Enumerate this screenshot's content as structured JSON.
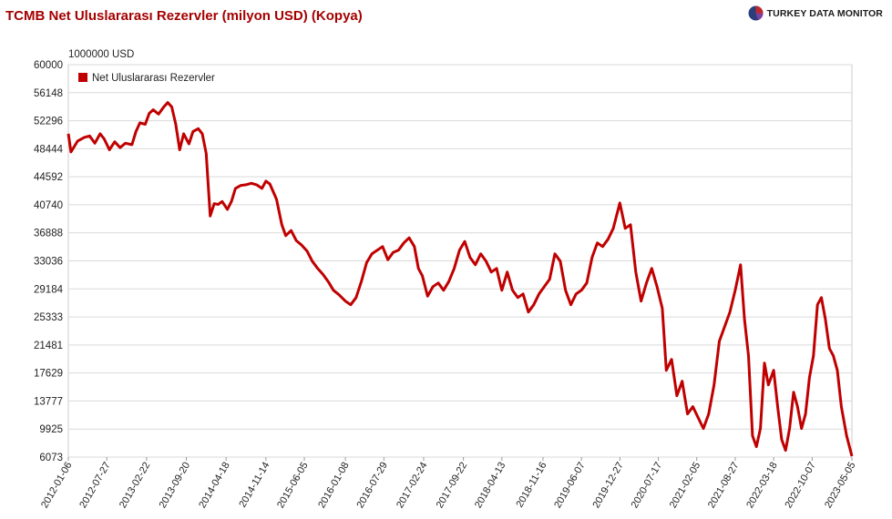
{
  "title": "TCMB Net Uluslararası Rezervler (milyon USD) (Kopya)",
  "logo": {
    "text": "TURKEY DATA MONITOR",
    "icon": "pie-logo-icon"
  },
  "colors": {
    "title": "#a50000",
    "series": "#c00000",
    "grid": "#d9d9d9"
  },
  "chart_data": {
    "type": "line",
    "unit_label": "1000000 USD",
    "legend_position": "top-left",
    "grid": true,
    "ylim": [
      6073,
      60000
    ],
    "y_ticks": [
      "60000",
      "56148",
      "52296",
      "48444",
      "44592",
      "40740",
      "36888",
      "33036",
      "29184",
      "25333",
      "21481",
      "17629",
      "13777",
      "9925",
      "6073"
    ],
    "x_ticks": [
      "2012-01-06",
      "2012-07-27",
      "2013-02-22",
      "2013-09-20",
      "2014-04-18",
      "2014-11-14",
      "2015-06-05",
      "2016-01-08",
      "2016-07-29",
      "2017-02-24",
      "2017-09-22",
      "2018-04-13",
      "2018-11-16",
      "2019-06-07",
      "2019-12-27",
      "2020-07-17",
      "2021-02-05",
      "2021-08-27",
      "2022-03-18",
      "2022-10-07",
      "2023-05-05"
    ],
    "series": [
      {
        "name": "Net Uluslararası Rezervler",
        "points": [
          [
            "2012-01-06",
            50500
          ],
          [
            "2012-01-20",
            48000
          ],
          [
            "2012-02-24",
            49500
          ],
          [
            "2012-03-30",
            50000
          ],
          [
            "2012-04-27",
            50200
          ],
          [
            "2012-05-25",
            49200
          ],
          [
            "2012-06-22",
            50500
          ],
          [
            "2012-07-13",
            49800
          ],
          [
            "2012-08-10",
            48300
          ],
          [
            "2012-09-07",
            49400
          ],
          [
            "2012-10-05",
            48600
          ],
          [
            "2012-11-02",
            49200
          ],
          [
            "2012-12-07",
            49000
          ],
          [
            "2012-12-28",
            50800
          ],
          [
            "2013-01-18",
            52000
          ],
          [
            "2013-02-15",
            51800
          ],
          [
            "2013-03-08",
            53300
          ],
          [
            "2013-03-29",
            53800
          ],
          [
            "2013-04-26",
            53200
          ],
          [
            "2013-05-24",
            54200
          ],
          [
            "2013-06-14",
            54800
          ],
          [
            "2013-07-05",
            54200
          ],
          [
            "2013-07-26",
            51800
          ],
          [
            "2013-08-16",
            48300
          ],
          [
            "2013-09-06",
            50500
          ],
          [
            "2013-10-04",
            49100
          ],
          [
            "2013-10-25",
            50800
          ],
          [
            "2013-11-22",
            51200
          ],
          [
            "2013-12-13",
            50500
          ],
          [
            "2014-01-03",
            47800
          ],
          [
            "2014-01-24",
            39200
          ],
          [
            "2014-02-14",
            40900
          ],
          [
            "2014-03-07",
            40800
          ],
          [
            "2014-03-28",
            41200
          ],
          [
            "2014-04-25",
            40100
          ],
          [
            "2014-05-16",
            41200
          ],
          [
            "2014-06-06",
            43000
          ],
          [
            "2014-07-04",
            43400
          ],
          [
            "2014-08-01",
            43500
          ],
          [
            "2014-08-29",
            43700
          ],
          [
            "2014-09-26",
            43500
          ],
          [
            "2014-10-24",
            43000
          ],
          [
            "2014-11-14",
            44000
          ],
          [
            "2014-12-05",
            43600
          ],
          [
            "2015-01-09",
            41500
          ],
          [
            "2015-02-06",
            38000
          ],
          [
            "2015-02-27",
            36500
          ],
          [
            "2015-03-27",
            37200
          ],
          [
            "2015-04-24",
            35800
          ],
          [
            "2015-05-22",
            35200
          ],
          [
            "2015-06-19",
            34400
          ],
          [
            "2015-07-17",
            33000
          ],
          [
            "2015-08-14",
            32000
          ],
          [
            "2015-09-11",
            31200
          ],
          [
            "2015-10-09",
            30200
          ],
          [
            "2015-11-06",
            29000
          ],
          [
            "2015-12-04",
            28400
          ],
          [
            "2016-01-08",
            27500
          ],
          [
            "2016-02-05",
            27000
          ],
          [
            "2016-03-04",
            28000
          ],
          [
            "2016-04-01",
            30200
          ],
          [
            "2016-04-29",
            32800
          ],
          [
            "2016-05-27",
            34000
          ],
          [
            "2016-06-24",
            34500
          ],
          [
            "2016-07-22",
            35000
          ],
          [
            "2016-08-19",
            33200
          ],
          [
            "2016-09-16",
            34200
          ],
          [
            "2016-10-14",
            34500
          ],
          [
            "2016-11-11",
            35500
          ],
          [
            "2016-12-09",
            36200
          ],
          [
            "2017-01-06",
            35000
          ],
          [
            "2017-01-27",
            32000
          ],
          [
            "2017-02-17",
            31000
          ],
          [
            "2017-03-17",
            28200
          ],
          [
            "2017-04-14",
            29500
          ],
          [
            "2017-05-12",
            30000
          ],
          [
            "2017-06-09",
            29000
          ],
          [
            "2017-07-07",
            30200
          ],
          [
            "2017-08-04",
            32000
          ],
          [
            "2017-09-01",
            34500
          ],
          [
            "2017-09-29",
            35700
          ],
          [
            "2017-10-27",
            33500
          ],
          [
            "2017-11-24",
            32500
          ],
          [
            "2017-12-22",
            34000
          ],
          [
            "2018-01-19",
            33000
          ],
          [
            "2018-02-16",
            31500
          ],
          [
            "2018-03-16",
            32000
          ],
          [
            "2018-04-13",
            29000
          ],
          [
            "2018-05-11",
            31500
          ],
          [
            "2018-06-08",
            29000
          ],
          [
            "2018-07-06",
            28000
          ],
          [
            "2018-08-03",
            28500
          ],
          [
            "2018-08-31",
            26000
          ],
          [
            "2018-09-28",
            27000
          ],
          [
            "2018-10-26",
            28500
          ],
          [
            "2018-11-23",
            29500
          ],
          [
            "2018-12-21",
            30500
          ],
          [
            "2019-01-18",
            34000
          ],
          [
            "2019-02-15",
            33000
          ],
          [
            "2019-03-15",
            29000
          ],
          [
            "2019-04-12",
            27000
          ],
          [
            "2019-05-10",
            28500
          ],
          [
            "2019-06-07",
            29000
          ],
          [
            "2019-07-05",
            30000
          ],
          [
            "2019-08-02",
            33500
          ],
          [
            "2019-08-30",
            35500
          ],
          [
            "2019-09-27",
            35000
          ],
          [
            "2019-10-25",
            36000
          ],
          [
            "2019-11-22",
            37500
          ],
          [
            "2019-12-27",
            41000
          ],
          [
            "2020-01-24",
            37500
          ],
          [
            "2020-02-21",
            38000
          ],
          [
            "2020-03-20",
            31500
          ],
          [
            "2020-04-17",
            27500
          ],
          [
            "2020-05-15",
            30000
          ],
          [
            "2020-06-12",
            32000
          ],
          [
            "2020-07-10",
            29500
          ],
          [
            "2020-08-07",
            26500
          ],
          [
            "2020-08-28",
            18000
          ],
          [
            "2020-09-25",
            19500
          ],
          [
            "2020-10-23",
            14500
          ],
          [
            "2020-11-20",
            16500
          ],
          [
            "2020-12-18",
            12000
          ],
          [
            "2021-01-15",
            13000
          ],
          [
            "2021-02-12",
            11500
          ],
          [
            "2021-03-12",
            10000
          ],
          [
            "2021-04-09",
            12000
          ],
          [
            "2021-05-07",
            16000
          ],
          [
            "2021-06-04",
            22000
          ],
          [
            "2021-07-02",
            24000
          ],
          [
            "2021-07-30",
            26000
          ],
          [
            "2021-08-27",
            29000
          ],
          [
            "2021-09-24",
            32500
          ],
          [
            "2021-10-15",
            25000
          ],
          [
            "2021-11-05",
            20000
          ],
          [
            "2021-11-26",
            9000
          ],
          [
            "2021-12-17",
            7500
          ],
          [
            "2022-01-07",
            10000
          ],
          [
            "2022-01-28",
            19000
          ],
          [
            "2022-02-18",
            16000
          ],
          [
            "2022-03-18",
            18000
          ],
          [
            "2022-04-08",
            13000
          ],
          [
            "2022-04-29",
            8500
          ],
          [
            "2022-05-20",
            7000
          ],
          [
            "2022-06-10",
            10000
          ],
          [
            "2022-07-01",
            15000
          ],
          [
            "2022-07-22",
            13000
          ],
          [
            "2022-08-12",
            10000
          ],
          [
            "2022-09-02",
            12000
          ],
          [
            "2022-09-23",
            17000
          ],
          [
            "2022-10-14",
            20000
          ],
          [
            "2022-11-04",
            27000
          ],
          [
            "2022-11-25",
            28000
          ],
          [
            "2022-12-16",
            25000
          ],
          [
            "2023-01-06",
            21000
          ],
          [
            "2023-01-27",
            20000
          ],
          [
            "2023-02-17",
            18000
          ],
          [
            "2023-03-10",
            13000
          ],
          [
            "2023-04-07",
            9000
          ],
          [
            "2023-05-05",
            6200
          ]
        ]
      }
    ]
  }
}
